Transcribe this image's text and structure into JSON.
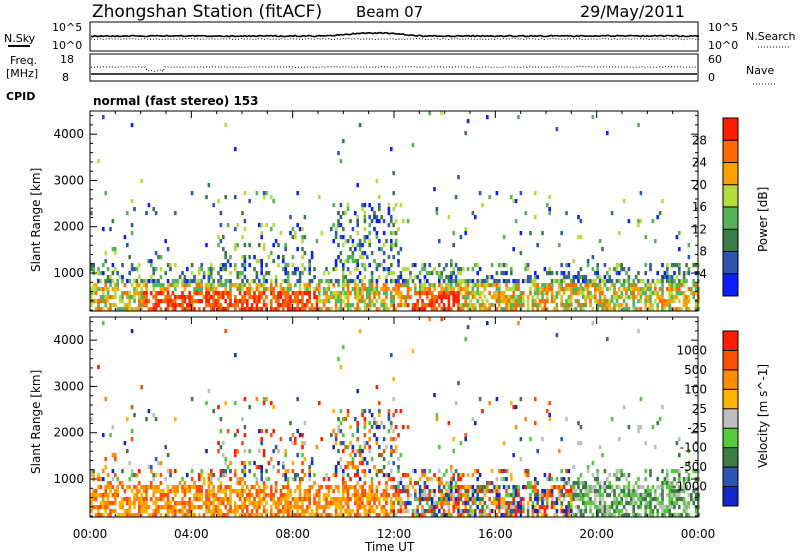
{
  "header": {
    "station": "Zhongshan Station (fitACF)",
    "beam": "Beam 07",
    "date": "29/May/2011"
  },
  "top_panels": {
    "nsky_label": "N.Sky",
    "nsky_ticks": [
      "10^5",
      "10^0"
    ],
    "nsearch_label": "N.Search",
    "nsearch_ticks": [
      "10^5",
      "10^0"
    ],
    "freq_label_1": "Freq.",
    "freq_label_2": "[MHz]",
    "freq_ticks": [
      "18",
      "8"
    ],
    "nave_label": "Nave",
    "nave_ticks": [
      "60",
      "0"
    ],
    "cpid_label": "CPID",
    "cpid_value": "normal (fast stereo) 153"
  },
  "chart_data": [
    {
      "type": "heatmap",
      "name": "power",
      "ylabel": "Slant Range [km]",
      "yticks": [
        "1000",
        "2000",
        "3000",
        "4000"
      ],
      "ylim": [
        180,
        4500
      ],
      "xlim": [
        0,
        24
      ],
      "colorbar": {
        "label": "Power [dB]",
        "ticks": [
          "4",
          "8",
          "12",
          "16",
          "20",
          "24",
          "28"
        ],
        "colors": [
          "#0a1eff",
          "#2d55b4",
          "#3c7a46",
          "#55b45a",
          "#b4dc3c",
          "#ffa000",
          "#ff6a00",
          "#ff1e00"
        ]
      }
    },
    {
      "type": "heatmap",
      "name": "velocity",
      "ylabel": "Slant Range [km]",
      "yticks": [
        "1000",
        "2000",
        "3000",
        "4000"
      ],
      "ylim": [
        180,
        4500
      ],
      "xlim": [
        0,
        24
      ],
      "xticks": [
        "00:00",
        "04:00",
        "08:00",
        "12:00",
        "16:00",
        "20:00",
        "00:00"
      ],
      "xlabel": "Time UT",
      "colorbar": {
        "label": "Velocity [m s^-1]",
        "ticks": [
          "1000",
          "500",
          "100",
          "25",
          "-25",
          "-100",
          "-500",
          "-1000"
        ],
        "colors": [
          "#1428c8",
          "#2d55b4",
          "#3c7a46",
          "#55c83c",
          "#bebebe",
          "#ffb400",
          "#ff8c00",
          "#ff5000",
          "#ff1e00"
        ]
      }
    }
  ]
}
